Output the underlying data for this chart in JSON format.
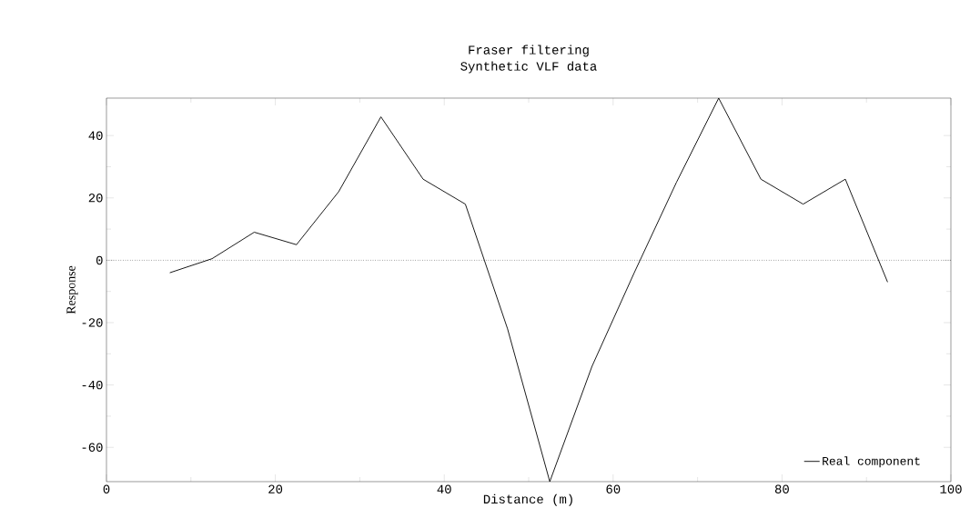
{
  "chart_data": {
    "type": "line",
    "title": "Fraser filtering",
    "subtitle": "Synthetic VLF data",
    "xlabel": "Distance (m)",
    "ylabel": "Response",
    "x": [
      7.5,
      12.5,
      17.5,
      22.5,
      27.5,
      32.5,
      37.5,
      42.5,
      47.5,
      52.5,
      57.5,
      62.5,
      67.5,
      72.5,
      77.5,
      82.5,
      87.5,
      92.5
    ],
    "series": [
      {
        "name": "Real component",
        "color": "#000000",
        "values": [
          -4,
          0.5,
          9,
          5,
          22,
          46,
          26,
          18,
          -22,
          -71,
          -34,
          -4,
          25,
          52,
          26,
          18,
          26,
          -7
        ]
      }
    ],
    "xlim": [
      0,
      100
    ],
    "ylim": [
      -71,
      52
    ],
    "xticks": [
      0,
      20,
      40,
      60,
      80,
      100
    ],
    "yticks": [
      -60,
      -40,
      -20,
      0,
      20,
      40
    ],
    "ref_lines": [
      {
        "axis": "y",
        "value": 0,
        "line_style": "dotted",
        "color": "#000000"
      }
    ],
    "grid": false,
    "legend": "bottom right",
    "marker": "none",
    "line_style": "solid"
  }
}
